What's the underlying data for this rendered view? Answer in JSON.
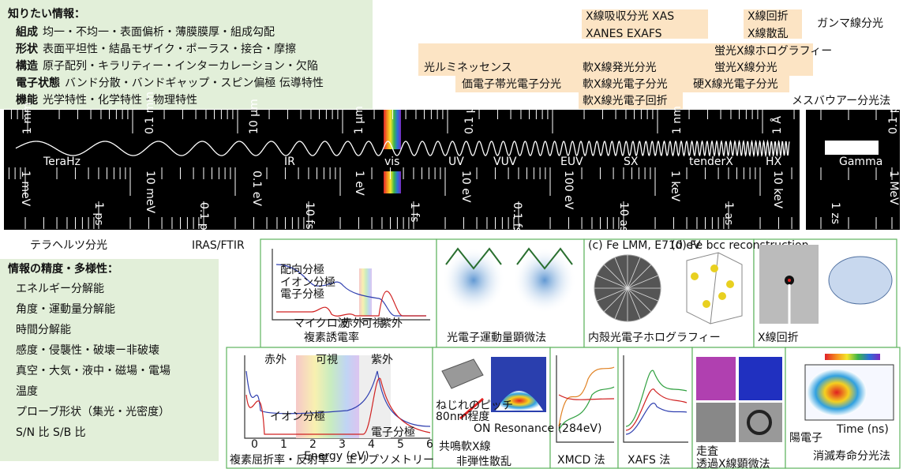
{
  "info_box": {
    "title": "知りたい情報：",
    "rows": [
      {
        "label": "組成",
        "text": "均一・不均一・表面偏析・薄膜膜厚・組成勾配"
      },
      {
        "label": "形状",
        "text": "表面平坦性・結晶モザイク・ポーラス・接合・摩擦"
      },
      {
        "label": "構造",
        "text": "原子配列・キラリティー・インターカレーション・欠陥"
      },
      {
        "label": "電子状態",
        "text": "バンド分散・バンドギャップ・スピン偏極 伝導特性"
      },
      {
        "label": "機能",
        "text": "光学特性・化学特性・物理特性"
      }
    ]
  },
  "techniques": [
    "X線吸収分光 XAS",
    "XANES EXAFS",
    "X線回折",
    "X線散乱",
    "ガンマ線分光",
    "蛍光X線ホログラフィー",
    "光ルミネッセンス",
    "軟X線発光分光",
    "蛍光X線分光",
    "価電子帯光電子分光",
    "軟X線光電子分光",
    "硬X線光電子分光",
    "軟X線光電子回折",
    "メスバウアー分光法"
  ],
  "spectrum": {
    "wavelength_labels": [
      "1 mm",
      "0.1 mm",
      "10 μm",
      "1 μm",
      "0.1 μm",
      "1 nm",
      "1 Å",
      "0.1 pm"
    ],
    "regions": [
      "TeraHz",
      "IR",
      "vis",
      "UV",
      "VUV",
      "EUV",
      "SX",
      "tenderX",
      "HX",
      "Gamma"
    ],
    "energy_labels": [
      "1 meV",
      "10 meV",
      "0.1 eV",
      "1 eV",
      "10 eV",
      "100 eV",
      "1 keV",
      "10 keV",
      "1 MeV"
    ],
    "time_labels": [
      "1 ps",
      "0.1 ps",
      "10 fs",
      "1 fs",
      "0.1 fs",
      "10 as",
      "1 as",
      "1 zs"
    ]
  },
  "below_spectrum": [
    "テラヘルツ分光",
    "IRAS/FTIR"
  ],
  "precision_box": {
    "title": "情報の精度・多様性：",
    "items": [
      "エネルギー分解能",
      "角度・運動量分解能",
      "時間分解能",
      "感度・侵襲性・破壊ー非破壊",
      "真空・大気・液中・磁場・電場",
      "温度",
      "プローブ形状（集光・光密度）",
      "S/N 比 S/B 比"
    ]
  },
  "panels": [
    {
      "caption": [
        "複素誘電率"
      ],
      "labels": [
        "配向分極",
        "イオン分極",
        "電子分極",
        "マイクロ波",
        "赤外",
        "可視",
        "紫外"
      ]
    },
    {
      "caption": [
        "光電子運動量顕微法"
      ]
    },
    {
      "caption": [
        "内殻光電子ホログラフィー"
      ],
      "labels": [
        "(c) Fe LMM, E710 eV",
        "(d) Fe bcc reconstruction"
      ]
    },
    {
      "caption": [
        "X線回折"
      ]
    },
    {
      "caption": [
        "複素屈折率・反射率",
        "エリプソメトリー"
      ],
      "labels": [
        "赤外",
        "可視",
        "紫外",
        "イオン分極",
        "電子分極",
        "Energy (eV)"
      ],
      "xticks": [
        0,
        1,
        2,
        3,
        4,
        5,
        6
      ]
    },
    {
      "caption": [
        "共鳴軟X線",
        "非弾性散乱"
      ],
      "labels": [
        "ねじれのピッチ",
        "80nm程度",
        "ON Resonance (284eV)"
      ]
    },
    {
      "caption": [
        "XMCD 法"
      ]
    },
    {
      "caption": [
        "XAFS 法"
      ]
    },
    {
      "caption": [
        "走査",
        "透過X線顕微法"
      ]
    },
    {
      "caption": [
        "陽電子",
        "消滅寿命分光法"
      ],
      "labels": [
        "Time (ns)"
      ]
    }
  ]
}
